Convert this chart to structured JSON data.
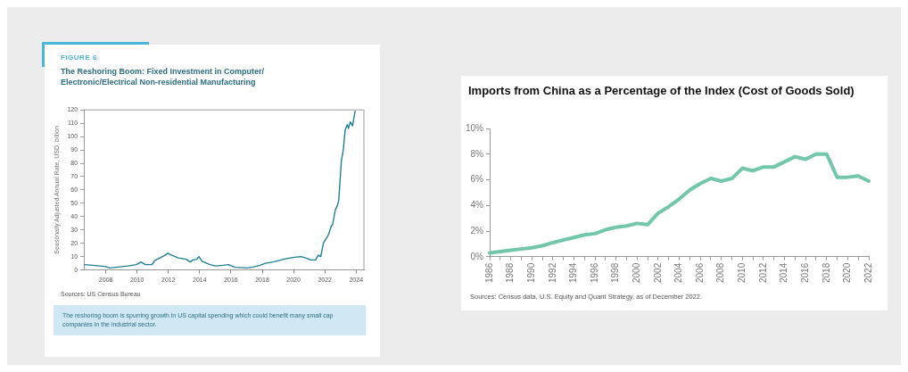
{
  "chart_data": [
    {
      "type": "line",
      "subtitle": "FIGURE 6",
      "title": "The Reshoring Boom: Fixed Investment in Computer/ Electronic/Electrical Non-residential Manufacturing",
      "ylabel": "Seasonally Adjusted Annual Rate, USD, billion",
      "x": [
        2006.65,
        2007.16,
        2008.0,
        2008.25,
        2009.43,
        2009.94,
        2010.11,
        2010.24,
        2010.53,
        2010.95,
        2011.12,
        2011.46,
        2011.79,
        2011.96,
        2012.22,
        2012.64,
        2013.14,
        2013.4,
        2013.56,
        2013.82,
        2013.95,
        2014.16,
        2014.66,
        2015.0,
        2015.5,
        2015.84,
        2016.26,
        2017.02,
        2017.36,
        2017.87,
        2018.2,
        2018.71,
        2019.05,
        2019.55,
        2020.06,
        2020.48,
        2020.9,
        2021.07,
        2021.41,
        2021.58,
        2021.74,
        2021.91,
        2022.17,
        2022.25,
        2022.42,
        2022.5,
        2022.67,
        2022.79,
        2022.89,
        2023.06,
        2023.18,
        2023.3,
        2023.43,
        2023.51,
        2023.63,
        2023.77,
        2023.94
      ],
      "series": [
        {
          "color": "#1f7f94",
          "values": [
            4,
            3.5,
            2.5,
            1.5,
            3,
            4,
            5,
            6,
            4,
            4,
            7,
            9,
            11,
            12.5,
            11,
            9,
            8,
            6,
            7.5,
            8,
            10,
            6.5,
            4,
            3,
            3.5,
            4,
            2,
            1.5,
            2,
            3.5,
            5,
            6,
            7,
            8.5,
            9.5,
            10,
            8.5,
            7.5,
            7.5,
            11,
            10,
            20,
            25,
            27,
            33,
            34,
            45,
            48,
            52,
            82,
            90,
            105,
            109,
            106,
            111,
            108,
            119
          ]
        }
      ],
      "xlim": [
        2006.6,
        2024.5
      ],
      "xticks": [
        2008,
        2010,
        2012,
        2014,
        2016,
        2018,
        2020,
        2022,
        2024
      ],
      "ylim": [
        0,
        120
      ],
      "yticks": [
        0,
        10,
        20,
        30,
        40,
        50,
        60,
        70,
        80,
        90,
        100,
        110,
        120
      ],
      "grid": false,
      "legend": false,
      "annotations": [
        "Sources: US Census Bureau",
        "The reshoring boom is spurring growth in US capital spending which could benefit many small cap companies in the industrial sector."
      ]
    },
    {
      "type": "line",
      "title": "Imports from China as a Percentage of the Index (Cost of Goods Sold)",
      "categories": [
        "1986",
        null,
        "1988",
        null,
        "1990",
        null,
        "1992",
        null,
        "1994",
        null,
        "1996",
        null,
        "1998",
        null,
        "2000",
        null,
        "2002",
        null,
        "2004",
        null,
        "2006",
        null,
        "2008",
        null,
        "2010",
        null,
        "2012",
        null,
        "2014",
        null,
        "2016",
        null,
        "2018",
        null,
        "2020",
        null,
        "2022"
      ],
      "series": [
        {
          "color": "#72c6ab",
          "values": [
            0.3,
            0.4,
            0.5,
            0.6,
            0.7,
            0.85,
            1.1,
            1.3,
            1.5,
            1.7,
            1.8,
            2.1,
            2.3,
            2.4,
            2.6,
            2.5,
            3.4,
            3.9,
            4.5,
            5.2,
            5.7,
            6.1,
            5.9,
            6.1,
            6.9,
            6.7,
            7.0,
            7.0,
            7.4,
            7.8,
            7.6,
            8.0,
            8.0,
            6.2,
            6.2,
            6.3,
            5.9
          ]
        }
      ],
      "ylim": [
        0,
        10
      ],
      "yticks": [
        {
          "value": 0,
          "label": "0%"
        },
        {
          "value": 2,
          "label": "2%"
        },
        {
          "value": 4,
          "label": "4%"
        },
        {
          "value": 6,
          "label": "6%"
        },
        {
          "value": 8,
          "label": "8%"
        },
        {
          "value": 10,
          "label": "10%"
        }
      ],
      "grid": false,
      "legend": false,
      "annotations": [
        "Sources: Census data, U.S. Equity and Quant Strategy, as of December 2022."
      ]
    }
  ]
}
